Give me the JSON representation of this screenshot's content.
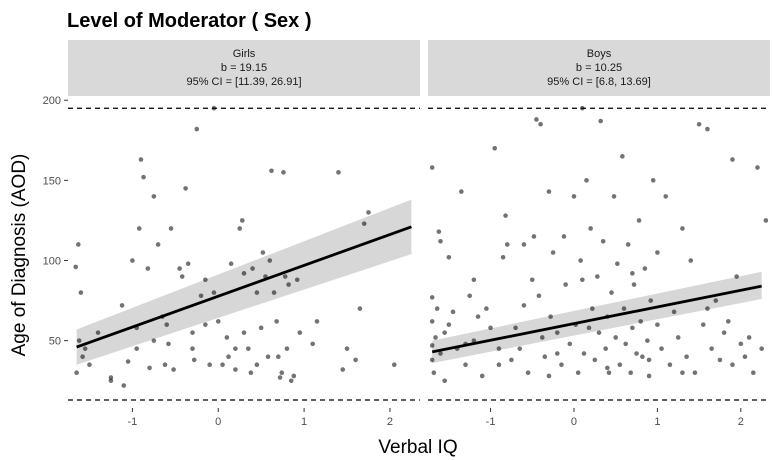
{
  "chart_data": {
    "type": "scatter",
    "title": "Level of Moderator ( Sex )",
    "xlabel": "Verbal IQ",
    "ylabel": "Age of Diagnosis (AOD)",
    "xlim": [
      -1.75,
      2.35
    ],
    "ylim": [
      8,
      202
    ],
    "x_ticks": [
      -1,
      0,
      1,
      2
    ],
    "x_tick_labels": [
      "-1",
      "0",
      "1",
      "2"
    ],
    "y_ticks": [
      50,
      100,
      150,
      200
    ],
    "y_tick_labels": [
      "50",
      "100",
      "150",
      "200"
    ],
    "reference_lines_y": [
      13,
      195
    ],
    "panels": [
      {
        "name": "Girls",
        "strip_lines": [
          "Girls",
          "b = 19.15",
          "95% CI = [11.39, 26.91]"
        ],
        "fit": {
          "x0": -1.65,
          "y0": 46,
          "x1": 2.25,
          "y1": 121
        },
        "band": {
          "x0": -1.65,
          "lower0": 35,
          "upper0": 57,
          "x1": 2.25,
          "lower1": 104,
          "upper1": 138
        },
        "points": [
          [
            -1.66,
            96
          ],
          [
            -1.63,
            110
          ],
          [
            -1.6,
            80
          ],
          [
            -1.62,
            50
          ],
          [
            -1.65,
            30
          ],
          [
            -1.58,
            40
          ],
          [
            -1.55,
            45
          ],
          [
            -1.5,
            35
          ],
          [
            -1.4,
            55
          ],
          [
            -1.25,
            27
          ],
          [
            -1.25,
            25
          ],
          [
            -1.1,
            22
          ],
          [
            -1.12,
            72
          ],
          [
            -1.05,
            37
          ],
          [
            -0.95,
            45
          ],
          [
            -0.95,
            58
          ],
          [
            -0.92,
            120
          ],
          [
            -0.9,
            163
          ],
          [
            -0.87,
            152
          ],
          [
            -0.82,
            95
          ],
          [
            -0.8,
            33
          ],
          [
            -0.75,
            140
          ],
          [
            -0.75,
            50
          ],
          [
            -0.7,
            110
          ],
          [
            -0.65,
            65
          ],
          [
            -0.62,
            35
          ],
          [
            -0.58,
            48
          ],
          [
            -0.55,
            120
          ],
          [
            -0.52,
            32
          ],
          [
            -0.45,
            95
          ],
          [
            -0.42,
            90
          ],
          [
            -0.38,
            145
          ],
          [
            -0.35,
            98
          ],
          [
            -0.3,
            45
          ],
          [
            -0.3,
            55
          ],
          [
            -0.28,
            38
          ],
          [
            -0.25,
            182
          ],
          [
            -0.2,
            78
          ],
          [
            -0.15,
            60
          ],
          [
            -0.1,
            35
          ],
          [
            -0.05,
            80
          ],
          [
            0.0,
            62
          ],
          [
            0.05,
            35
          ],
          [
            0.1,
            52
          ],
          [
            0.12,
            40
          ],
          [
            0.15,
            98
          ],
          [
            0.2,
            45
          ],
          [
            0.2,
            32
          ],
          [
            0.25,
            120
          ],
          [
            0.28,
            125
          ],
          [
            0.3,
            55
          ],
          [
            0.35,
            45
          ],
          [
            0.38,
            30
          ],
          [
            0.4,
            95
          ],
          [
            0.45,
            80
          ],
          [
            0.5,
            58
          ],
          [
            0.52,
            105
          ],
          [
            0.55,
            90
          ],
          [
            0.58,
            40
          ],
          [
            0.6,
            100
          ],
          [
            0.62,
            156
          ],
          [
            0.65,
            80
          ],
          [
            0.68,
            62
          ],
          [
            0.7,
            40
          ],
          [
            0.72,
            27
          ],
          [
            0.74,
            30
          ],
          [
            0.76,
            155
          ],
          [
            0.78,
            90
          ],
          [
            0.8,
            45
          ],
          [
            0.82,
            85
          ],
          [
            0.85,
            25
          ],
          [
            0.88,
            28
          ],
          [
            0.92,
            88
          ],
          [
            1.1,
            48
          ],
          [
            1.15,
            62
          ],
          [
            1.4,
            155
          ],
          [
            1.45,
            32
          ],
          [
            1.5,
            45
          ],
          [
            1.6,
            38
          ],
          [
            1.75,
            130
          ],
          [
            1.65,
            70
          ],
          [
            1.7,
            123
          ],
          [
            2.05,
            35
          ],
          [
            -0.05,
            195
          ],
          [
            -0.6,
            60
          ],
          [
            0.45,
            35
          ],
          [
            0.3,
            92
          ],
          [
            -1.0,
            100
          ],
          [
            -0.15,
            88
          ],
          [
            0.95,
            55
          ]
        ]
      },
      {
        "name": "Boys",
        "strip_lines": [
          "Boys",
          "b = 10.25",
          "95% CI = [6.8, 13.69]"
        ],
        "fit": {
          "x0": -1.7,
          "y0": 43,
          "x1": 2.25,
          "y1": 84
        },
        "band": {
          "x0": -1.7,
          "lower0": 36,
          "upper0": 50,
          "x1": 2.25,
          "lower1": 76,
          "upper1": 93
        },
        "points": [
          [
            -1.7,
            158
          ],
          [
            -1.7,
            77
          ],
          [
            -1.7,
            62
          ],
          [
            -1.7,
            47
          ],
          [
            -1.7,
            38
          ],
          [
            -1.68,
            30
          ],
          [
            -1.66,
            52
          ],
          [
            -1.64,
            70
          ],
          [
            -1.62,
            118
          ],
          [
            -1.6,
            112
          ],
          [
            -1.6,
            42
          ],
          [
            -1.55,
            25
          ],
          [
            -1.55,
            55
          ],
          [
            -1.5,
            60
          ],
          [
            -1.45,
            68
          ],
          [
            -1.4,
            45
          ],
          [
            -1.35,
            143
          ],
          [
            -1.3,
            35
          ],
          [
            -1.25,
            78
          ],
          [
            -1.2,
            50
          ],
          [
            -1.15,
            65
          ],
          [
            -1.1,
            28
          ],
          [
            -1.05,
            70
          ],
          [
            -1.0,
            58
          ],
          [
            -0.95,
            170
          ],
          [
            -0.9,
            45
          ],
          [
            -0.85,
            102
          ],
          [
            -0.82,
            128
          ],
          [
            -0.8,
            110
          ],
          [
            -0.75,
            38
          ],
          [
            -0.7,
            58
          ],
          [
            -0.65,
            45
          ],
          [
            -0.6,
            110
          ],
          [
            -0.55,
            30
          ],
          [
            -0.5,
            88
          ],
          [
            -0.48,
            115
          ],
          [
            -0.45,
            188
          ],
          [
            -0.42,
            78
          ],
          [
            -0.4,
            185
          ],
          [
            -0.38,
            52
          ],
          [
            -0.35,
            40
          ],
          [
            -0.3,
            143
          ],
          [
            -0.28,
            65
          ],
          [
            -0.25,
            105
          ],
          [
            -0.2,
            55
          ],
          [
            -0.15,
            35
          ],
          [
            -0.12,
            115
          ],
          [
            -0.1,
            85
          ],
          [
            -0.05,
            48
          ],
          [
            0.0,
            140
          ],
          [
            0.02,
            60
          ],
          [
            0.05,
            30
          ],
          [
            0.08,
            100
          ],
          [
            0.1,
            88
          ],
          [
            0.12,
            42
          ],
          [
            0.15,
            150
          ],
          [
            0.18,
            58
          ],
          [
            0.2,
            120
          ],
          [
            0.22,
            70
          ],
          [
            0.25,
            38
          ],
          [
            0.28,
            90
          ],
          [
            0.3,
            55
          ],
          [
            0.32,
            187
          ],
          [
            0.35,
            112
          ],
          [
            0.38,
            45
          ],
          [
            0.4,
            65
          ],
          [
            0.42,
            30
          ],
          [
            0.45,
            80
          ],
          [
            0.48,
            140
          ],
          [
            0.5,
            52
          ],
          [
            0.52,
            98
          ],
          [
            0.55,
            35
          ],
          [
            0.58,
            165
          ],
          [
            0.6,
            70
          ],
          [
            0.62,
            48
          ],
          [
            0.65,
            110
          ],
          [
            0.68,
            30
          ],
          [
            0.7,
            58
          ],
          [
            0.72,
            85
          ],
          [
            0.75,
            42
          ],
          [
            0.78,
            125
          ],
          [
            0.8,
            62
          ],
          [
            0.82,
            40
          ],
          [
            0.85,
            95
          ],
          [
            0.88,
            50
          ],
          [
            0.9,
            28
          ],
          [
            0.92,
            75
          ],
          [
            0.95,
            150
          ],
          [
            1.0,
            60
          ],
          [
            1.05,
            45
          ],
          [
            1.1,
            140
          ],
          [
            1.15,
            35
          ],
          [
            1.2,
            68
          ],
          [
            1.25,
            52
          ],
          [
            1.3,
            120
          ],
          [
            1.35,
            40
          ],
          [
            1.4,
            100
          ],
          [
            1.45,
            30
          ],
          [
            1.5,
            185
          ],
          [
            1.55,
            60
          ],
          [
            1.6,
            182
          ],
          [
            1.65,
            45
          ],
          [
            1.7,
            75
          ],
          [
            1.75,
            38
          ],
          [
            1.8,
            55
          ],
          [
            1.85,
            62
          ],
          [
            1.9,
            35
          ],
          [
            1.95,
            90
          ],
          [
            2.0,
            48
          ],
          [
            2.05,
            40
          ],
          [
            2.1,
            52
          ],
          [
            2.15,
            30
          ],
          [
            2.2,
            158
          ],
          [
            2.25,
            45
          ],
          [
            2.3,
            125
          ],
          [
            -1.5,
            102
          ],
          [
            -1.2,
            88
          ],
          [
            -0.9,
            35
          ],
          [
            -0.6,
            72
          ],
          [
            -0.3,
            28
          ],
          [
            0.1,
            195
          ],
          [
            0.4,
            33
          ],
          [
            0.7,
            92
          ],
          [
            1.0,
            105
          ],
          [
            1.3,
            30
          ],
          [
            1.6,
            70
          ],
          [
            1.9,
            163
          ],
          [
            -1.3,
            48
          ],
          [
            -0.2,
            42
          ],
          [
            0.9,
            38
          ]
        ]
      }
    ]
  }
}
